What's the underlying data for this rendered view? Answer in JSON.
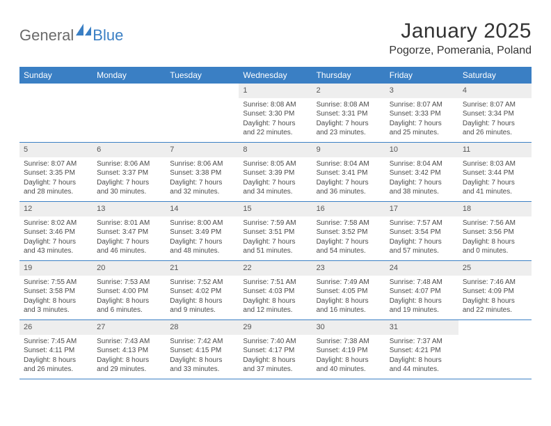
{
  "logo": {
    "text1": "General",
    "text2": "Blue",
    "color_gray": "#6a6a6a",
    "color_blue": "#3a7fc4"
  },
  "title": "January 2025",
  "location": "Pogorze, Pomerania, Poland",
  "colors": {
    "header_bg": "#3a7fc4",
    "header_text": "#ffffff",
    "daynum_bg": "#eeeeee",
    "border": "#3a7fc4",
    "body_text": "#4a4a4a",
    "background": "#ffffff"
  },
  "typography": {
    "title_fontsize": 30,
    "location_fontsize": 16,
    "dayheader_fontsize": 12,
    "daynum_fontsize": 11,
    "cell_fontsize": 10
  },
  "day_names": [
    "Sunday",
    "Monday",
    "Tuesday",
    "Wednesday",
    "Thursday",
    "Friday",
    "Saturday"
  ],
  "weeks": [
    [
      {
        "n": "",
        "sr": "",
        "ss": "",
        "dl": ""
      },
      {
        "n": "",
        "sr": "",
        "ss": "",
        "dl": ""
      },
      {
        "n": "",
        "sr": "",
        "ss": "",
        "dl": ""
      },
      {
        "n": "1",
        "sr": "Sunrise: 8:08 AM",
        "ss": "Sunset: 3:30 PM",
        "dl": "Daylight: 7 hours and 22 minutes."
      },
      {
        "n": "2",
        "sr": "Sunrise: 8:08 AM",
        "ss": "Sunset: 3:31 PM",
        "dl": "Daylight: 7 hours and 23 minutes."
      },
      {
        "n": "3",
        "sr": "Sunrise: 8:07 AM",
        "ss": "Sunset: 3:33 PM",
        "dl": "Daylight: 7 hours and 25 minutes."
      },
      {
        "n": "4",
        "sr": "Sunrise: 8:07 AM",
        "ss": "Sunset: 3:34 PM",
        "dl": "Daylight: 7 hours and 26 minutes."
      }
    ],
    [
      {
        "n": "5",
        "sr": "Sunrise: 8:07 AM",
        "ss": "Sunset: 3:35 PM",
        "dl": "Daylight: 7 hours and 28 minutes."
      },
      {
        "n": "6",
        "sr": "Sunrise: 8:06 AM",
        "ss": "Sunset: 3:37 PM",
        "dl": "Daylight: 7 hours and 30 minutes."
      },
      {
        "n": "7",
        "sr": "Sunrise: 8:06 AM",
        "ss": "Sunset: 3:38 PM",
        "dl": "Daylight: 7 hours and 32 minutes."
      },
      {
        "n": "8",
        "sr": "Sunrise: 8:05 AM",
        "ss": "Sunset: 3:39 PM",
        "dl": "Daylight: 7 hours and 34 minutes."
      },
      {
        "n": "9",
        "sr": "Sunrise: 8:04 AM",
        "ss": "Sunset: 3:41 PM",
        "dl": "Daylight: 7 hours and 36 minutes."
      },
      {
        "n": "10",
        "sr": "Sunrise: 8:04 AM",
        "ss": "Sunset: 3:42 PM",
        "dl": "Daylight: 7 hours and 38 minutes."
      },
      {
        "n": "11",
        "sr": "Sunrise: 8:03 AM",
        "ss": "Sunset: 3:44 PM",
        "dl": "Daylight: 7 hours and 41 minutes."
      }
    ],
    [
      {
        "n": "12",
        "sr": "Sunrise: 8:02 AM",
        "ss": "Sunset: 3:46 PM",
        "dl": "Daylight: 7 hours and 43 minutes."
      },
      {
        "n": "13",
        "sr": "Sunrise: 8:01 AM",
        "ss": "Sunset: 3:47 PM",
        "dl": "Daylight: 7 hours and 46 minutes."
      },
      {
        "n": "14",
        "sr": "Sunrise: 8:00 AM",
        "ss": "Sunset: 3:49 PM",
        "dl": "Daylight: 7 hours and 48 minutes."
      },
      {
        "n": "15",
        "sr": "Sunrise: 7:59 AM",
        "ss": "Sunset: 3:51 PM",
        "dl": "Daylight: 7 hours and 51 minutes."
      },
      {
        "n": "16",
        "sr": "Sunrise: 7:58 AM",
        "ss": "Sunset: 3:52 PM",
        "dl": "Daylight: 7 hours and 54 minutes."
      },
      {
        "n": "17",
        "sr": "Sunrise: 7:57 AM",
        "ss": "Sunset: 3:54 PM",
        "dl": "Daylight: 7 hours and 57 minutes."
      },
      {
        "n": "18",
        "sr": "Sunrise: 7:56 AM",
        "ss": "Sunset: 3:56 PM",
        "dl": "Daylight: 8 hours and 0 minutes."
      }
    ],
    [
      {
        "n": "19",
        "sr": "Sunrise: 7:55 AM",
        "ss": "Sunset: 3:58 PM",
        "dl": "Daylight: 8 hours and 3 minutes."
      },
      {
        "n": "20",
        "sr": "Sunrise: 7:53 AM",
        "ss": "Sunset: 4:00 PM",
        "dl": "Daylight: 8 hours and 6 minutes."
      },
      {
        "n": "21",
        "sr": "Sunrise: 7:52 AM",
        "ss": "Sunset: 4:02 PM",
        "dl": "Daylight: 8 hours and 9 minutes."
      },
      {
        "n": "22",
        "sr": "Sunrise: 7:51 AM",
        "ss": "Sunset: 4:03 PM",
        "dl": "Daylight: 8 hours and 12 minutes."
      },
      {
        "n": "23",
        "sr": "Sunrise: 7:49 AM",
        "ss": "Sunset: 4:05 PM",
        "dl": "Daylight: 8 hours and 16 minutes."
      },
      {
        "n": "24",
        "sr": "Sunrise: 7:48 AM",
        "ss": "Sunset: 4:07 PM",
        "dl": "Daylight: 8 hours and 19 minutes."
      },
      {
        "n": "25",
        "sr": "Sunrise: 7:46 AM",
        "ss": "Sunset: 4:09 PM",
        "dl": "Daylight: 8 hours and 22 minutes."
      }
    ],
    [
      {
        "n": "26",
        "sr": "Sunrise: 7:45 AM",
        "ss": "Sunset: 4:11 PM",
        "dl": "Daylight: 8 hours and 26 minutes."
      },
      {
        "n": "27",
        "sr": "Sunrise: 7:43 AM",
        "ss": "Sunset: 4:13 PM",
        "dl": "Daylight: 8 hours and 29 minutes."
      },
      {
        "n": "28",
        "sr": "Sunrise: 7:42 AM",
        "ss": "Sunset: 4:15 PM",
        "dl": "Daylight: 8 hours and 33 minutes."
      },
      {
        "n": "29",
        "sr": "Sunrise: 7:40 AM",
        "ss": "Sunset: 4:17 PM",
        "dl": "Daylight: 8 hours and 37 minutes."
      },
      {
        "n": "30",
        "sr": "Sunrise: 7:38 AM",
        "ss": "Sunset: 4:19 PM",
        "dl": "Daylight: 8 hours and 40 minutes."
      },
      {
        "n": "31",
        "sr": "Sunrise: 7:37 AM",
        "ss": "Sunset: 4:21 PM",
        "dl": "Daylight: 8 hours and 44 minutes."
      },
      {
        "n": "",
        "sr": "",
        "ss": "",
        "dl": ""
      }
    ]
  ]
}
